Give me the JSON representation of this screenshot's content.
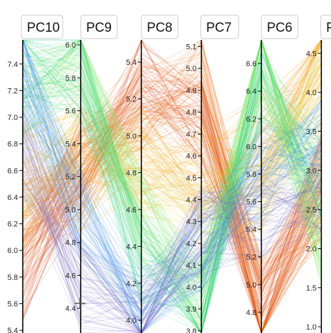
{
  "chart_data": {
    "type": "parallel-coordinates",
    "axes": [
      {
        "name": "PC10",
        "ticks": [
          5.4,
          5.6,
          5.8,
          6.0,
          6.2,
          6.4,
          6.6,
          6.8,
          7.0,
          7.2,
          7.4
        ],
        "range": [
          5.38,
          7.58
        ]
      },
      {
        "name": "PC9",
        "ticks": [
          4.4,
          4.6,
          4.8,
          5.0,
          5.2,
          5.4,
          5.6,
          5.8,
          6.0
        ],
        "range": [
          4.25,
          6.03
        ]
      },
      {
        "name": "PC8",
        "ticks": [
          4.0,
          4.2,
          4.4,
          4.6,
          4.8,
          5.0,
          5.2,
          5.4
        ],
        "range": [
          3.93,
          5.52
        ]
      },
      {
        "name": "PC7",
        "ticks": [
          3.8,
          3.9,
          4.0,
          4.1,
          4.2,
          4.3,
          4.4,
          4.5,
          4.6,
          4.7,
          4.8,
          4.9,
          5.0,
          5.1
        ],
        "range": [
          3.79,
          5.13
        ]
      },
      {
        "name": "PC6",
        "ticks": [
          4.8,
          5.0,
          5.2,
          5.4,
          5.6,
          5.8,
          6.0,
          6.2,
          6.4,
          6.6
        ],
        "range": [
          4.65,
          6.77
        ]
      },
      {
        "name": "P",
        "ticks": [
          1.0,
          1.5,
          2.0,
          2.5,
          3.0,
          3.5,
          4.0,
          4.5
        ],
        "range": [
          0.92,
          4.67
        ]
      }
    ],
    "colors": [
      "#d63a0a",
      "#ef6a10",
      "#f4a020",
      "#e8c832",
      "#7de860",
      "#3ad88a",
      "#3a8ee6",
      "#7a6cc0"
    ],
    "grid": false,
    "legend": "none"
  }
}
